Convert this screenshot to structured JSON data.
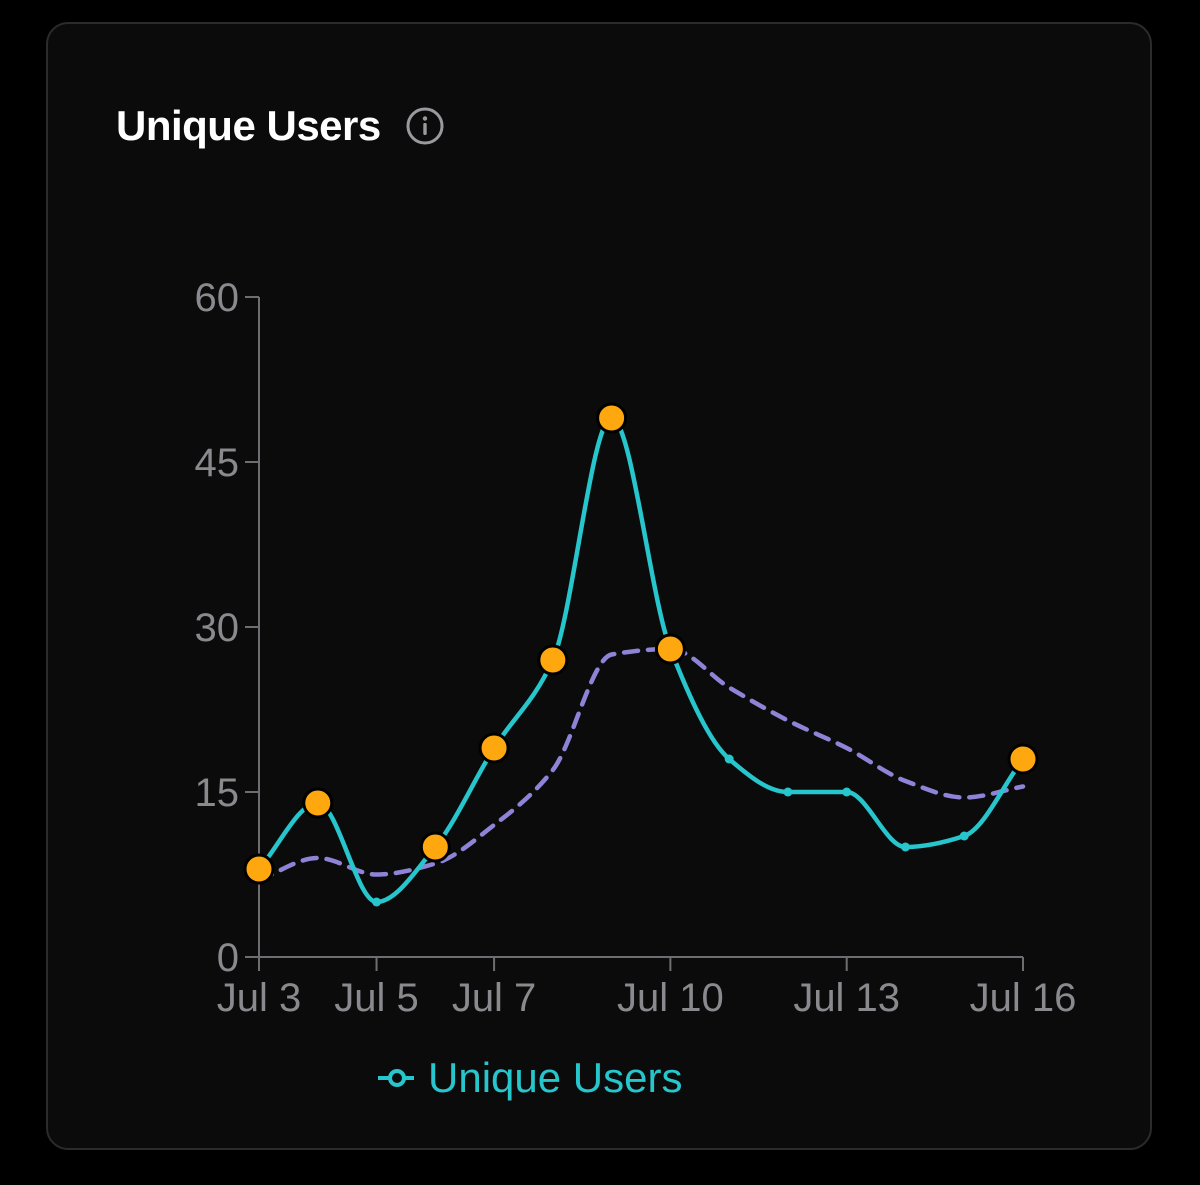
{
  "card": {
    "title": "Unique Users",
    "info_icon": "info-circle-icon"
  },
  "colors": {
    "background": "#0b0b0c",
    "series": "#26c6cc",
    "trend": "#8d84d8",
    "marker": "#ffa70f",
    "axis": "#6e6e72",
    "tick_text": "#8a8a8e"
  },
  "chart_data": {
    "type": "line",
    "x": [
      "Jul 3",
      "Jul 4",
      "Jul 5",
      "Jul 6",
      "Jul 7",
      "Jul 8",
      "Jul 9",
      "Jul 10",
      "Jul 11",
      "Jul 12",
      "Jul 13",
      "Jul 14",
      "Jul 15",
      "Jul 16"
    ],
    "x_tick_labels": [
      "Jul 3",
      "Jul 5",
      "Jul 7",
      "Jul 10",
      "Jul 13",
      "Jul 16"
    ],
    "y_ticks": [
      0,
      15,
      30,
      45,
      60
    ],
    "ylim": [
      0,
      60
    ],
    "grid": false,
    "legend": "bottom",
    "series": [
      {
        "name": "Unique Users",
        "style": "solid",
        "values": [
          8,
          14,
          5,
          10,
          19,
          27,
          49,
          28,
          18,
          15,
          15,
          10,
          11,
          18
        ],
        "highlighted": [
          true,
          true,
          false,
          true,
          true,
          true,
          true,
          true,
          false,
          false,
          false,
          false,
          false,
          true
        ]
      },
      {
        "style": "dashed",
        "values": [
          7,
          9,
          7.5,
          8.5,
          12,
          17,
          27.5,
          28,
          24.5,
          21.5,
          19,
          16,
          14.5,
          15.5
        ]
      }
    ]
  }
}
